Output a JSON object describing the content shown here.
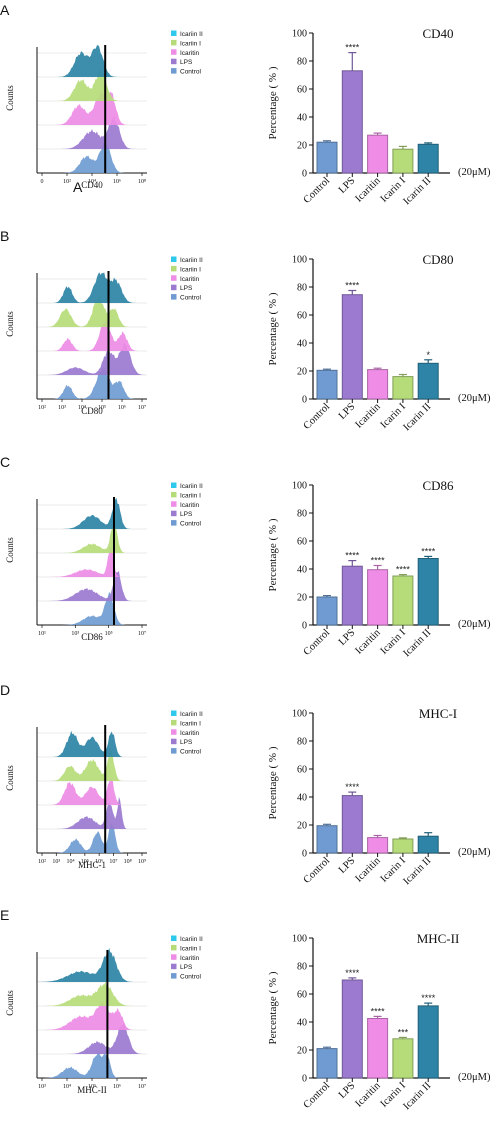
{
  "colors": {
    "control": "#6f9bd2",
    "lps": "#9b7ad0",
    "icaritin": "#ee8ce6",
    "icariin_i": "#b6dc7a",
    "icariin_ii": "#2d84a6",
    "icariin_ii_legend": "#2ec8ec",
    "histogram_stack_bottom_to_top": [
      "control",
      "lps",
      "icaritin",
      "icariin_i",
      "icariin_ii"
    ]
  },
  "legend": [
    "Icariin II",
    "Icariin I",
    "Icaritin",
    "LPS",
    "Control"
  ],
  "legend_color_keys": [
    "icariin_ii_legend",
    "icariin_i",
    "icaritin",
    "lps",
    "control"
  ],
  "bar_categories": [
    "Control",
    "LPS",
    "Icaritin",
    "Icarin I",
    "Icarin II"
  ],
  "bar_color_keys": [
    "control",
    "lps",
    "icaritin",
    "icariin_i",
    "icariin_ii"
  ],
  "histogram_ylabel": "Counts",
  "bar_ylabel": "Percentage ( % )",
  "bar_yticks": [
    "0",
    "20",
    "40",
    "60",
    "80",
    "100"
  ],
  "concentration_label": "(20μM)",
  "stray_label_A": "A",
  "chart_data": [
    {
      "panel": "A",
      "type": "histogram",
      "xlabel": "CD40",
      "xticks": [
        "0",
        "10²",
        "10⁴",
        "10⁶",
        "10⁸"
      ],
      "gate_line": 5.3,
      "bar_chart": {
        "type": "bar",
        "title": "CD40",
        "categories": [
          "Control",
          "LPS",
          "Icaritin",
          "Icarin I",
          "Icarin II"
        ],
        "values": [
          22,
          73,
          27,
          17,
          20.5
        ],
        "errors": [
          1,
          13,
          1.5,
          2,
          1
        ],
        "significance": [
          "",
          "****",
          "",
          "",
          ""
        ],
        "ylim": [
          0,
          100
        ]
      }
    },
    {
      "panel": "B",
      "type": "histogram",
      "xlabel": "CD80",
      "xticks": [
        "10²",
        "10³",
        "10⁴",
        "10⁵",
        "10⁶",
        "10⁷"
      ],
      "gate_line": 5.05,
      "bar_chart": {
        "type": "bar",
        "title": "CD80",
        "categories": [
          "Control",
          "LPS",
          "Icaritin",
          "Icarin I",
          "Icarin II"
        ],
        "values": [
          20.5,
          74.5,
          21,
          16,
          25.5
        ],
        "errors": [
          0.8,
          3,
          1,
          1.5,
          2.5
        ],
        "significance": [
          "",
          "****",
          "",
          "",
          "*"
        ],
        "ylim": [
          0,
          100
        ]
      }
    },
    {
      "panel": "C",
      "type": "histogram",
      "xlabel": "CD86",
      "xticks": [
        "10¹",
        "10³",
        "10⁵",
        "10⁷"
      ],
      "gate_line": 5.0,
      "bar_chart": {
        "type": "bar",
        "title": "CD86",
        "categories": [
          "Control",
          "LPS",
          "Icaritin",
          "Icarin I",
          "Icarin II"
        ],
        "values": [
          20,
          42,
          39.5,
          35,
          47.5
        ],
        "errors": [
          1,
          4,
          3,
          1,
          1.5
        ],
        "significance": [
          "",
          "****",
          "****",
          "****",
          "****"
        ],
        "ylim": [
          0,
          100
        ]
      }
    },
    {
      "panel": "D",
      "type": "histogram",
      "xlabel": "MHC-1",
      "xticks": [
        "10²",
        "10³",
        "10⁴",
        "10⁵",
        "10⁶",
        "10⁷",
        "10⁸",
        "10⁹"
      ],
      "gate_line": 4.95,
      "bar_chart": {
        "type": "bar",
        "title": "MHC-I",
        "categories": [
          "Control",
          "LPS",
          "Icaritin",
          "Icarin I",
          "Icarin II"
        ],
        "values": [
          19.5,
          41,
          11,
          10,
          12
        ],
        "errors": [
          1,
          2.5,
          1.5,
          0.8,
          2.5
        ],
        "significance": [
          "",
          "****",
          "",
          "",
          ""
        ],
        "ylim": [
          0,
          100
        ]
      }
    },
    {
      "panel": "E",
      "type": "histogram",
      "xlabel": "MHC-II",
      "xticks": [
        "10³",
        "10⁴",
        "10⁵",
        "10⁶",
        "10⁷"
      ],
      "gate_line": 5.35,
      "bar_chart": {
        "type": "bar",
        "title": "MHC-II",
        "categories": [
          "Control",
          "LPS",
          "Icaritin",
          "Icarin I",
          "Icarin II"
        ],
        "values": [
          21,
          70,
          42.5,
          28,
          51.5
        ],
        "errors": [
          1,
          1.5,
          1.5,
          1,
          2
        ],
        "significance": [
          "",
          "****",
          "****",
          "***",
          "****"
        ],
        "ylim": [
          0,
          100
        ]
      }
    }
  ]
}
